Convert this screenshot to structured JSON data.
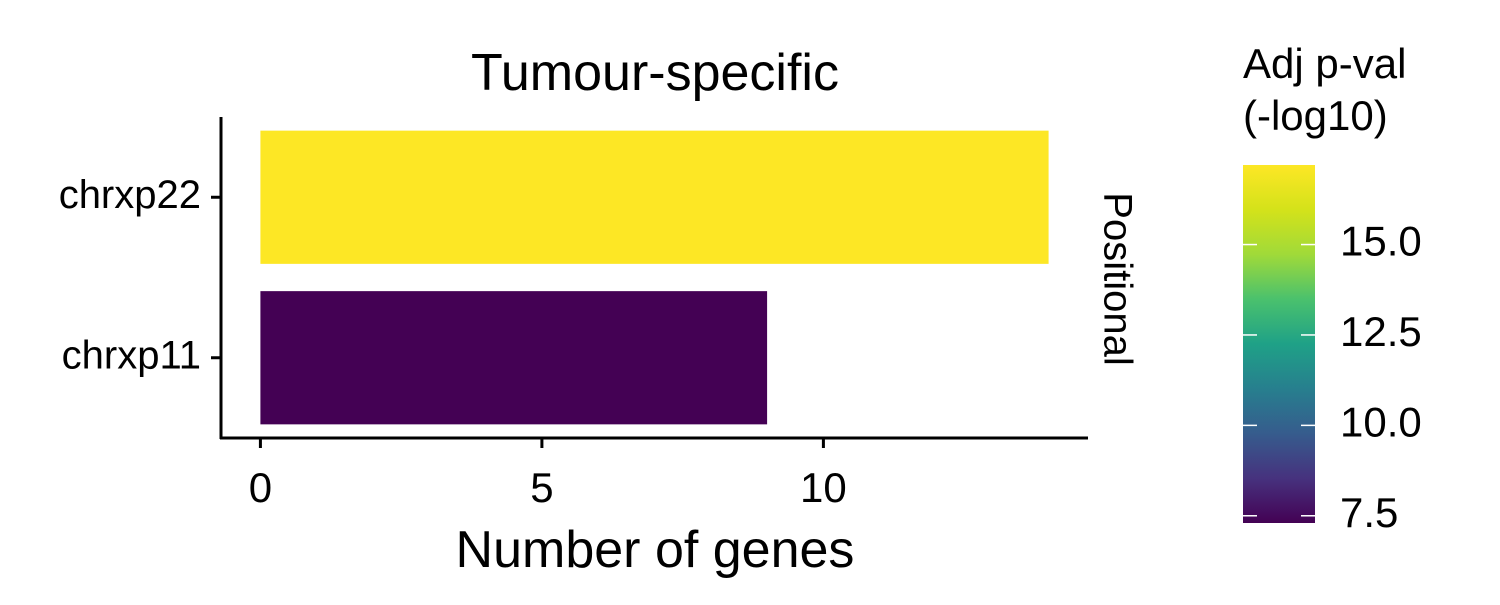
{
  "chart_data": {
    "type": "bar",
    "orientation": "horizontal",
    "title": "Tumour-specific",
    "facet_label": "Positional",
    "xlabel": "Number of genes",
    "ylabel": "",
    "categories": [
      "chrxp22",
      "chrxp11"
    ],
    "values": [
      14,
      9
    ],
    "color_values": [
      17.2,
      7.3
    ],
    "xlim": [
      -0.7,
      14.7
    ],
    "xticks": [
      0,
      5,
      10
    ],
    "grid": false,
    "legend": {
      "title_lines": [
        "Adj p-val",
        "(-log10)"
      ],
      "type": "colorbar",
      "palette": "viridis",
      "range": [
        7.3,
        17.2
      ],
      "ticks": [
        7.5,
        10.0,
        12.5,
        15.0
      ],
      "tick_labels": [
        "7.5",
        "10.0",
        "12.5",
        "15.0"
      ],
      "position": "right"
    }
  }
}
